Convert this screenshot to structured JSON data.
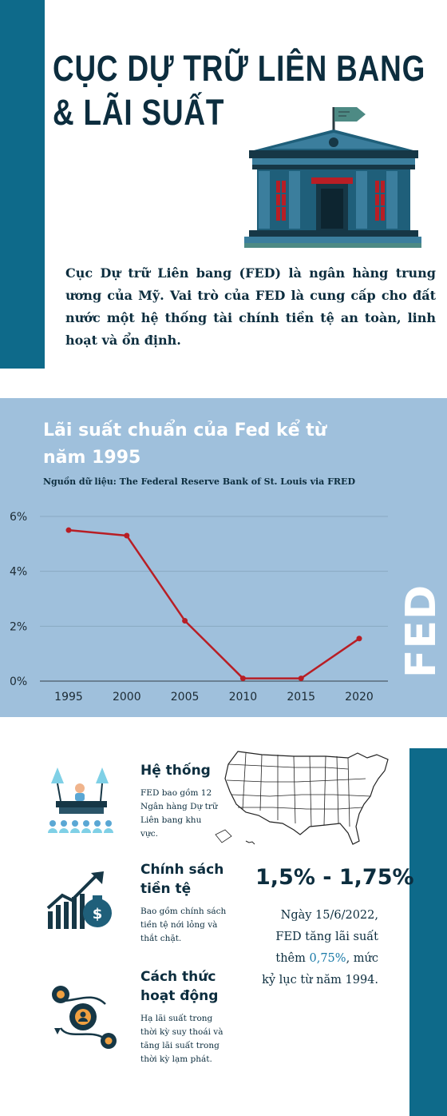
{
  "header": {
    "title_line1": "CỤC DỰ TRỮ LIÊN BANG",
    "title_line2": "& LÃI SUẤT",
    "intro": "Cục Dự trữ Liên bang (FED) là ngân hàng trung ương của Mỹ. Vai trò của FED là cung cấp cho đất nước một hệ thống tài chính tiền tệ an toàn, linh hoạt và ổn định."
  },
  "colors": {
    "accent": "#0e6a8a",
    "navy": "#0c2d3e",
    "chart_bg": "#9fc0dc",
    "line": "#b81e25",
    "highlight": "#1a7aa8"
  },
  "chart_data": {
    "type": "line",
    "title": "Lãi suất chuẩn của Fed kể từ năm 1995",
    "source": "Nguồn dữ liệu: The Federal Reserve Bank of St. Louis via FRED",
    "x": [
      1995,
      2000,
      2005,
      2010,
      2015,
      2020
    ],
    "x_tick_labels": [
      "1995",
      "2000",
      "2005",
      "2010",
      "2015",
      "2020"
    ],
    "y_tick_labels": [
      "6%",
      "4%",
      "2%",
      "0%"
    ],
    "y_ticks": [
      6,
      4,
      2,
      0
    ],
    "ylim": [
      0,
      6
    ],
    "series": [
      {
        "values": [
          5.5,
          5.3,
          2.2,
          0.1,
          0.1,
          1.55
        ]
      }
    ],
    "grid": true,
    "side_label": "FED"
  },
  "items": [
    {
      "title": "Hệ thống",
      "desc": "FED bao gồm 12 Ngân hàng Dự trữ Liên bang khu vực.",
      "icon": "conference-icon"
    },
    {
      "title": "Chính sách tiền tệ",
      "desc": "Bao gồm chính sách tiền tệ nới lỏng và thắt chặt.",
      "icon": "growth-money-icon"
    },
    {
      "title": "Cách thức hoạt động",
      "desc": "Hạ lãi suất trong thời kỳ suy thoái và tăng lãi suất trong thời kỳ lạm phát.",
      "icon": "gears-icon"
    }
  ],
  "rate": {
    "range": "1,5% - 1,75%",
    "note_before": "Ngày 15/6/2022, FED tăng lãi suất thêm ",
    "note_highlight": "0,75%",
    "note_after": ", mức kỷ lục từ năm 1994."
  },
  "icons": {
    "building": "federal-reserve-building-icon",
    "map": "usa-map-icon"
  }
}
